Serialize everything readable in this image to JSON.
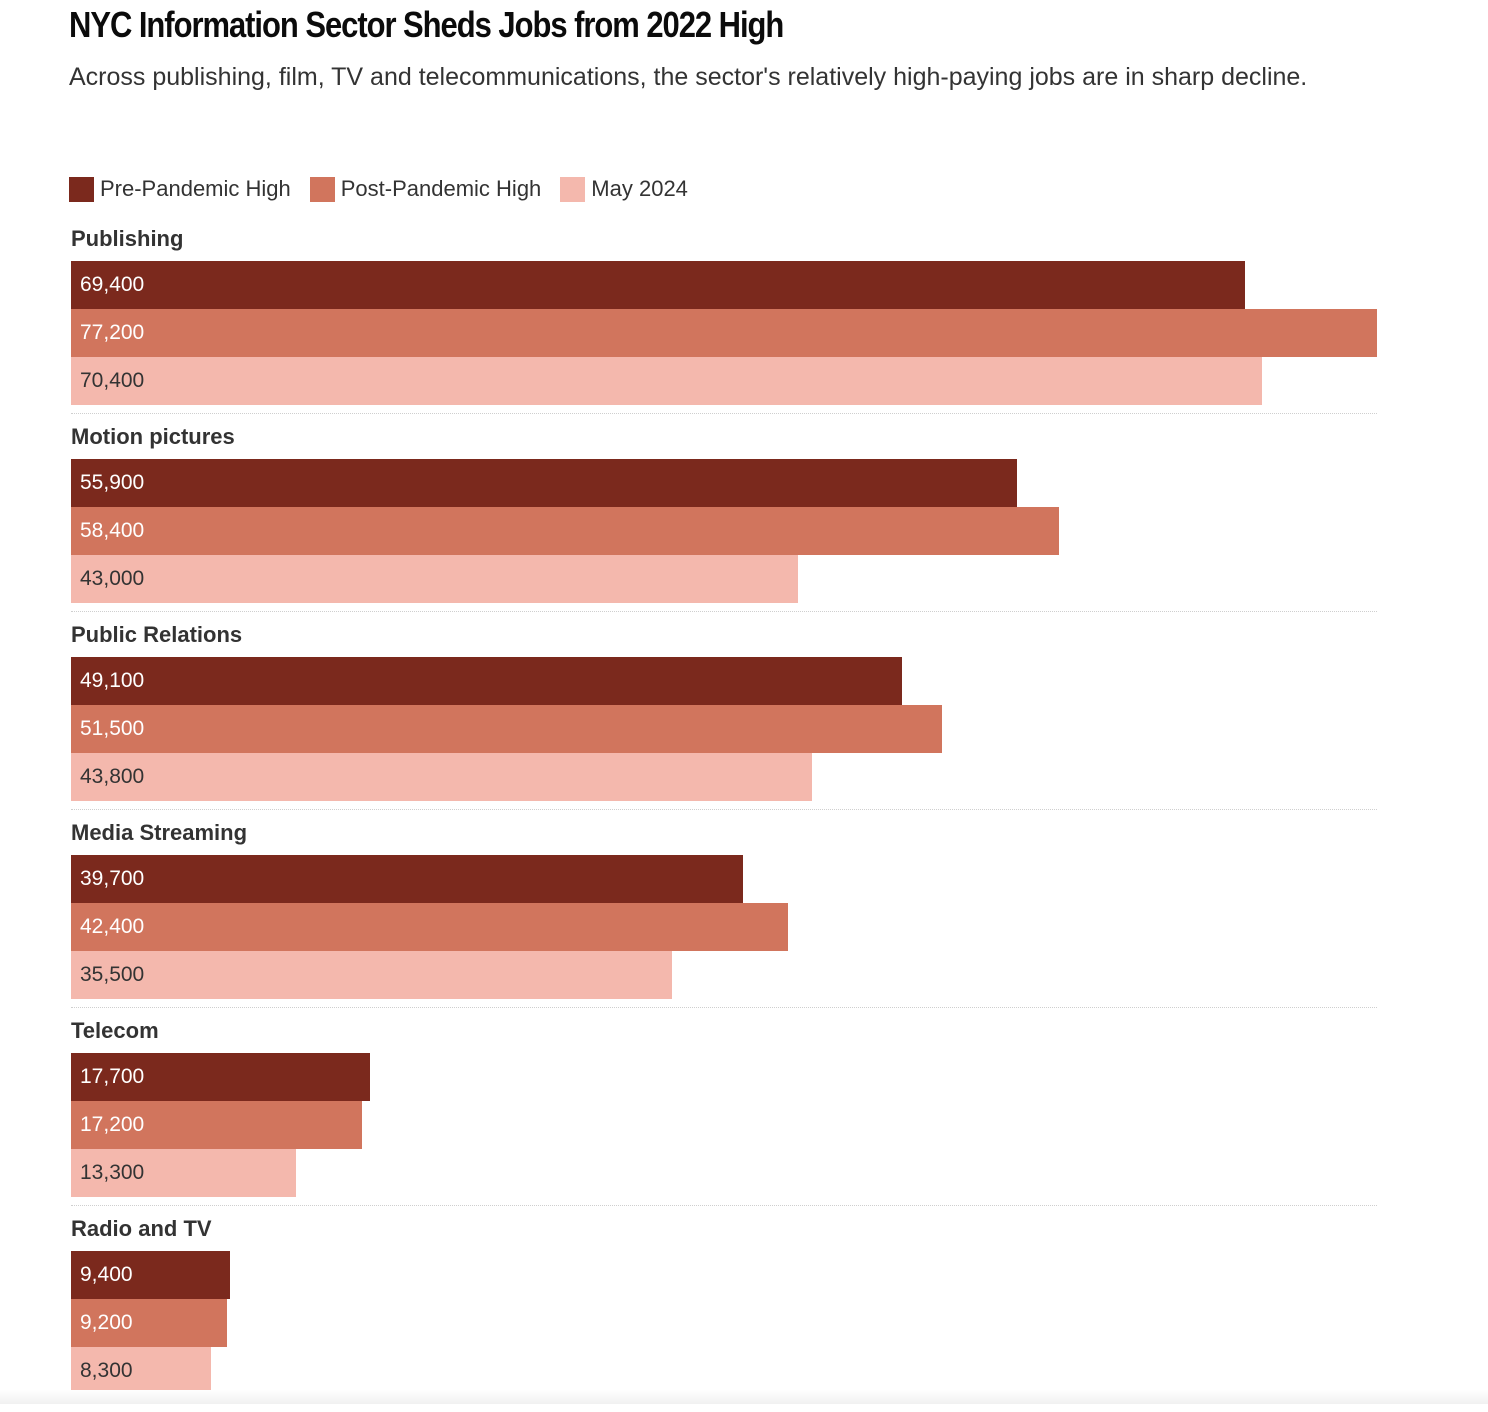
{
  "title": "NYC Information Sector Sheds Jobs from 2022 High",
  "subtitle": "Across publishing, film, TV and telecommunications, the sector's relatively high-paying jobs are in sharp decline.",
  "chart_data": {
    "type": "bar",
    "orientation": "horizontal",
    "title": "NYC Information Sector Sheds Jobs from 2022 High",
    "subtitle": "Across publishing, film, TV and telecommunications, the sector's relatively high-paying jobs are in sharp decline.",
    "categories": [
      "Publishing",
      "Motion pictures",
      "Public Relations",
      "Media Streaming",
      "Telecom",
      "Radio and TV"
    ],
    "series": [
      {
        "name": "Pre-Pandemic High",
        "color": "#7b291d",
        "label_color": "#ffffff",
        "values": [
          69400,
          55900,
          49100,
          39700,
          17700,
          9400
        ],
        "labels": [
          "69,400",
          "55,900",
          "49,100",
          "39,700",
          "17,700",
          "9,400"
        ]
      },
      {
        "name": "Post-Pandemic High",
        "color": "#d1755d",
        "label_color": "#ffffff",
        "values": [
          77200,
          58400,
          51500,
          42400,
          17200,
          9200
        ],
        "labels": [
          "77,200",
          "58,400",
          "51,500",
          "42,400",
          "17,200",
          "9,200"
        ]
      },
      {
        "name": "May 2024",
        "color": "#f4b8ad",
        "label_color": "#333333",
        "values": [
          70400,
          43000,
          43800,
          35500,
          13300,
          8300
        ],
        "labels": [
          "70,400",
          "43,000",
          "43,800",
          "35,500",
          "13,300",
          "8,300"
        ]
      }
    ],
    "xlim": [
      0,
      77200
    ],
    "legend": "top-left",
    "grid": false
  }
}
